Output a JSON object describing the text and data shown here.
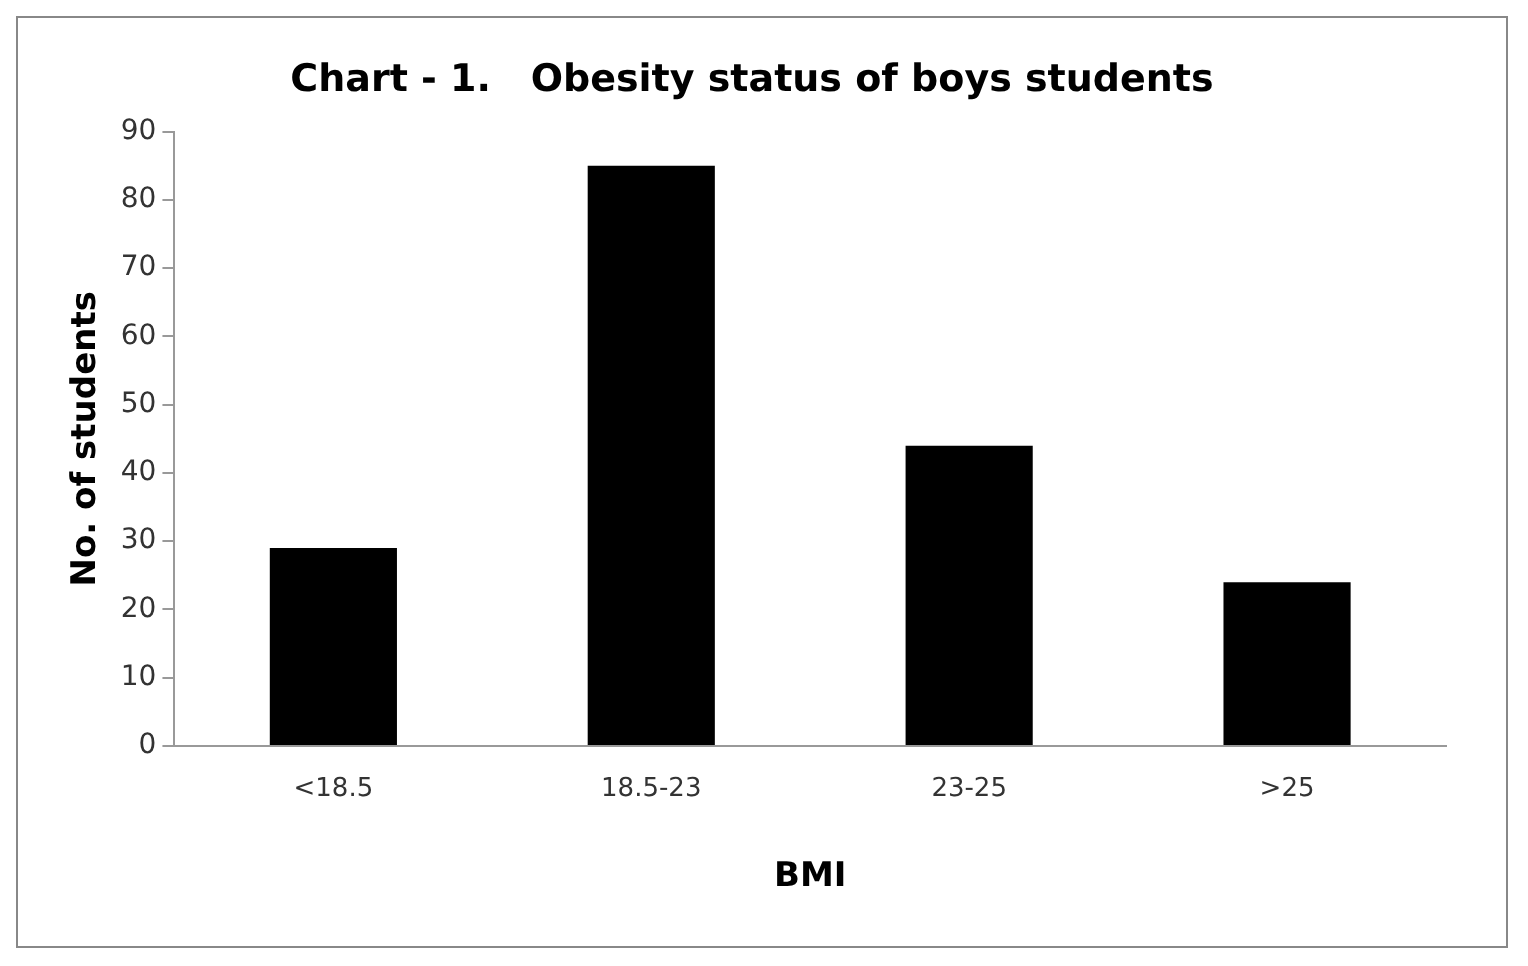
{
  "chart_data": {
    "type": "bar",
    "title": "Chart - 1.   Obesity status of boys students",
    "xlabel": "BMI",
    "ylabel": "No. of students",
    "categories": [
      "<18.5",
      "18.5-23",
      "23-25",
      ">25"
    ],
    "values": [
      29,
      85,
      44,
      24
    ],
    "color": "#000000",
    "ylim": [
      0,
      90
    ],
    "yticks": [
      0,
      10,
      20,
      30,
      40,
      50,
      60,
      70,
      80,
      90
    ],
    "grid": false,
    "legend": false
  }
}
